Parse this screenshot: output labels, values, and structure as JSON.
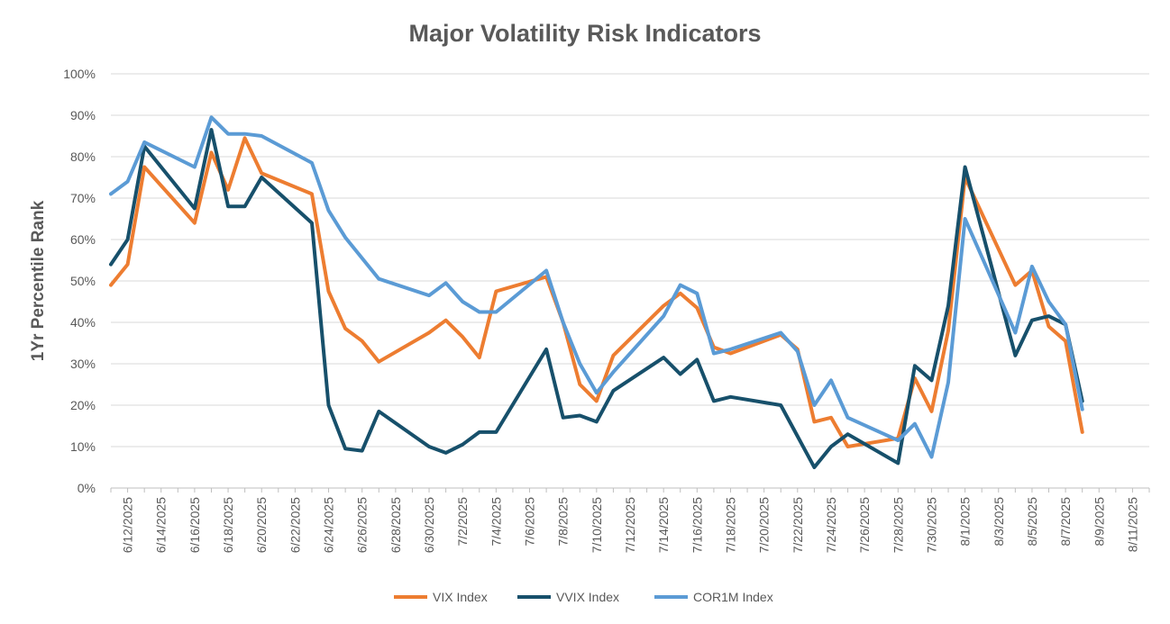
{
  "chart_data": {
    "type": "line",
    "title": "Major Volatility Risk Indicators",
    "xlabel": "",
    "ylabel": "1Yr Percentile Rank",
    "ylim": [
      0,
      100
    ],
    "y_ticks": [
      "0%",
      "10%",
      "20%",
      "30%",
      "40%",
      "50%",
      "60%",
      "70%",
      "80%",
      "90%",
      "100%"
    ],
    "x_range": [
      "2025-06-11",
      "2025-08-12"
    ],
    "x_ticks": [
      "6/12/2025",
      "6/14/2025",
      "6/16/2025",
      "6/18/2025",
      "6/20/2025",
      "6/22/2025",
      "6/24/2025",
      "6/26/2025",
      "6/28/2025",
      "6/30/2025",
      "7/2/2025",
      "7/4/2025",
      "7/6/2025",
      "7/8/2025",
      "7/10/2025",
      "7/12/2025",
      "7/14/2025",
      "7/16/2025",
      "7/18/2025",
      "7/20/2025",
      "7/22/2025",
      "7/24/2025",
      "7/26/2025",
      "7/28/2025",
      "7/30/2025",
      "8/1/2025",
      "8/3/2025",
      "8/5/2025",
      "8/7/2025",
      "8/9/2025",
      "8/11/2025"
    ],
    "grid": true,
    "legend_position": "bottom",
    "x": [
      "2025-06-11",
      "2025-06-12",
      "2025-06-13",
      "2025-06-16",
      "2025-06-17",
      "2025-06-18",
      "2025-06-19",
      "2025-06-20",
      "2025-06-23",
      "2025-06-24",
      "2025-06-25",
      "2025-06-26",
      "2025-06-27",
      "2025-06-30",
      "2025-07-01",
      "2025-07-02",
      "2025-07-03",
      "2025-07-04",
      "2025-07-07",
      "2025-07-08",
      "2025-07-09",
      "2025-07-10",
      "2025-07-11",
      "2025-07-14",
      "2025-07-15",
      "2025-07-16",
      "2025-07-17",
      "2025-07-18",
      "2025-07-21",
      "2025-07-22",
      "2025-07-23",
      "2025-07-24",
      "2025-07-25",
      "2025-07-28",
      "2025-07-29",
      "2025-07-30",
      "2025-07-31",
      "2025-08-01",
      "2025-08-04",
      "2025-08-05",
      "2025-08-06",
      "2025-08-07",
      "2025-08-08"
    ],
    "series": [
      {
        "name": "VIX Index",
        "color": "#ED7D31",
        "values": [
          49,
          54,
          77.5,
          64,
          81,
          72,
          84.5,
          76,
          71,
          47.5,
          38.5,
          35.5,
          30.5,
          37.5,
          40.5,
          36.5,
          31.5,
          47.5,
          51,
          40,
          25,
          21,
          32,
          44,
          47,
          43.5,
          34,
          32.5,
          37,
          33.5,
          16,
          17,
          10,
          12,
          26.5,
          18.5,
          38,
          75,
          49,
          52.5,
          39,
          35.5,
          13.5
        ]
      },
      {
        "name": "VVIX Index",
        "color": "#17506B",
        "values": [
          54,
          60,
          82.5,
          67.5,
          86.5,
          68,
          68,
          75,
          64,
          20,
          9.5,
          9,
          18.5,
          10,
          8.5,
          10.5,
          13.5,
          13.5,
          33.5,
          17,
          17.5,
          16,
          23.5,
          31.5,
          27.5,
          31,
          21,
          22,
          20,
          12.5,
          5,
          10,
          13,
          6,
          29.5,
          26,
          44,
          77.5,
          32,
          40.5,
          41.5,
          39.5,
          21
        ]
      },
      {
        "name": "COR1M Index",
        "color": "#5B9BD5",
        "values": [
          71,
          74,
          83.5,
          77.5,
          89.5,
          85.5,
          85.5,
          85,
          78.5,
          67,
          60.5,
          55.5,
          50.5,
          46.5,
          49.5,
          45,
          42.5,
          42.5,
          52.5,
          40,
          30,
          23,
          28,
          41.5,
          49,
          47,
          32.5,
          33.5,
          37.5,
          33,
          20,
          26,
          17,
          11.5,
          15.5,
          7.5,
          25.5,
          65,
          37.5,
          53.5,
          45,
          39.5,
          19
        ]
      }
    ]
  }
}
